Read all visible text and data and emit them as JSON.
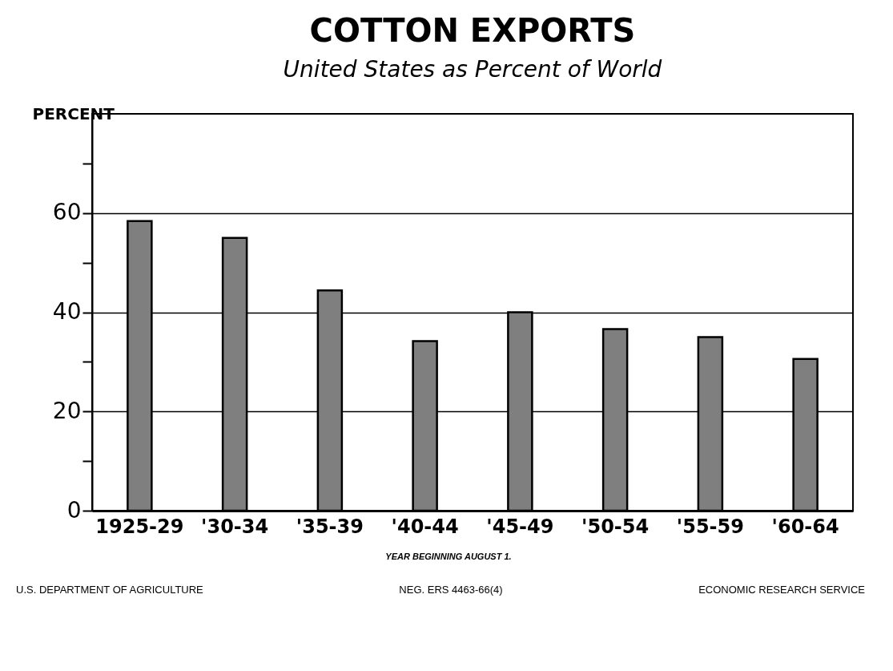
{
  "chart_data": {
    "type": "bar",
    "title": "COTTON EXPORTS",
    "subtitle": "United States as Percent of World",
    "ylabel": "PERCENT",
    "categories": [
      "1925-29",
      "'30-34",
      "'35-39",
      "'40-44",
      "'45-49",
      "'50-54",
      "'55-59",
      "'60-64"
    ],
    "values": [
      58.4,
      55,
      44.4,
      34.2,
      40,
      36.6,
      35,
      30.6
    ],
    "color": "#7f7f7f",
    "ylim": [
      0,
      80
    ],
    "yticks": [
      0,
      {
        "value": 10,
        "label": null
      },
      20,
      {
        "value": 30,
        "label": null
      },
      40,
      {
        "value": 50,
        "label": null
      },
      60,
      {
        "value": 70,
        "label": null
      }
    ],
    "grid": "y",
    "annotations": [
      "YEAR BEGINNING AUGUST 1.",
      "U.S. DEPARTMENT OF AGRICULTURE",
      "NEG. ERS 4463-66(4)",
      "ECONOMIC RESEARCH SERVICE"
    ]
  }
}
